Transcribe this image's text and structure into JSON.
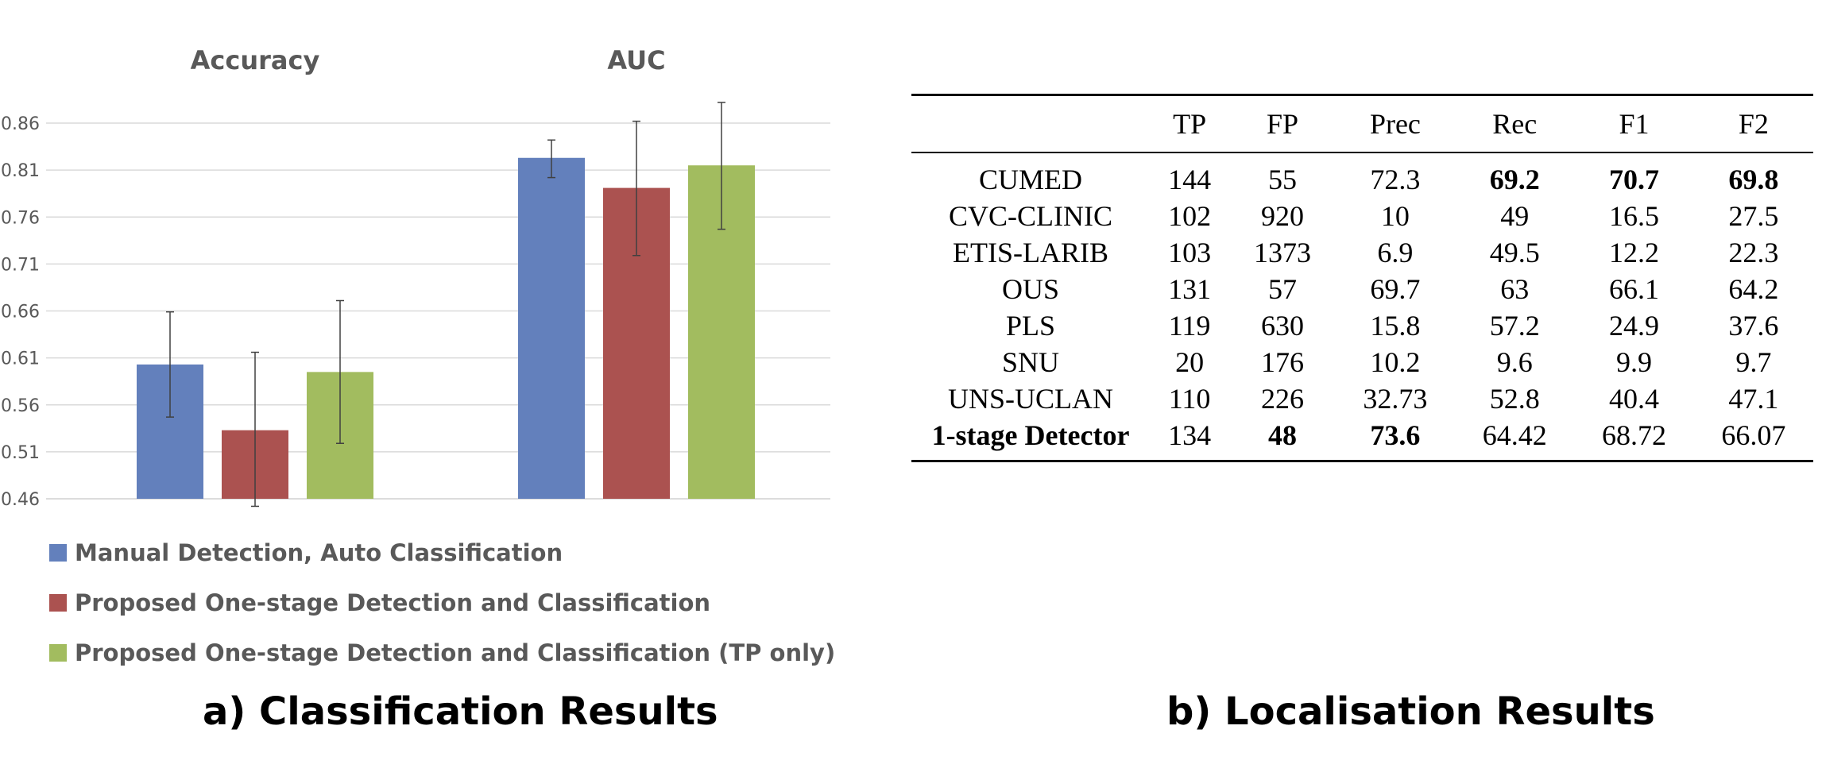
{
  "chart_data": {
    "type": "bar",
    "groups": [
      "Accuracy",
      "AUC"
    ],
    "yticks": [
      "0.46",
      "0.51",
      "0.56",
      "0.61",
      "0.66",
      "0.71",
      "0.76",
      "0.81",
      "0.86"
    ],
    "ylim": [
      0.46,
      0.88
    ],
    "grid": true,
    "series": [
      {
        "name": "Manual Detection, Auto Classification",
        "color": "#6380bc",
        "values": [
          0.603,
          0.823
        ],
        "err_low": [
          0.547,
          0.802
        ],
        "err_high": [
          0.659,
          0.842
        ]
      },
      {
        "name": "Proposed One-stage Detection and Classification",
        "color": "#ab5250",
        "values": [
          0.533,
          0.791
        ],
        "err_low": [
          0.452,
          0.719
        ],
        "err_high": [
          0.616,
          0.862
        ]
      },
      {
        "name": "Proposed One-stage Detection and Classification (TP only)",
        "color": "#a2bc5f",
        "values": [
          0.595,
          0.815
        ],
        "err_low": [
          0.519,
          0.747
        ],
        "err_high": [
          0.671,
          0.882
        ]
      }
    ],
    "legend_position": "bottom"
  },
  "captions": {
    "a": "a) Classification Results",
    "b": "b) Localisation Results"
  },
  "table": {
    "headers": [
      "",
      "TP",
      "FP",
      "Prec",
      "Rec",
      "F1",
      "F2"
    ],
    "rows": [
      {
        "cells": [
          "CUMED",
          "144",
          "55",
          "72.3",
          "69.2",
          "70.7",
          "69.8"
        ],
        "bold": [
          false,
          false,
          false,
          false,
          true,
          true,
          true
        ]
      },
      {
        "cells": [
          "CVC-CLINIC",
          "102",
          "920",
          "10",
          "49",
          "16.5",
          "27.5"
        ],
        "bold": [
          false,
          false,
          false,
          false,
          false,
          false,
          false
        ]
      },
      {
        "cells": [
          "ETIS-LARIB",
          "103",
          "1373",
          "6.9",
          "49.5",
          "12.2",
          "22.3"
        ],
        "bold": [
          false,
          false,
          false,
          false,
          false,
          false,
          false
        ]
      },
      {
        "cells": [
          "OUS",
          "131",
          "57",
          "69.7",
          "63",
          "66.1",
          "64.2"
        ],
        "bold": [
          false,
          false,
          false,
          false,
          false,
          false,
          false
        ]
      },
      {
        "cells": [
          "PLS",
          "119",
          "630",
          "15.8",
          "57.2",
          "24.9",
          "37.6"
        ],
        "bold": [
          false,
          false,
          false,
          false,
          false,
          false,
          false
        ]
      },
      {
        "cells": [
          "SNU",
          "20",
          "176",
          "10.2",
          "9.6",
          "9.9",
          "9.7"
        ],
        "bold": [
          false,
          false,
          false,
          false,
          false,
          false,
          false
        ]
      },
      {
        "cells": [
          "UNS-UCLAN",
          "110",
          "226",
          "32.73",
          "52.8",
          "40.4",
          "47.1"
        ],
        "bold": [
          false,
          false,
          false,
          false,
          false,
          false,
          false
        ]
      },
      {
        "cells": [
          "1-stage Detector",
          "134",
          "48",
          "73.6",
          "64.42",
          "68.72",
          "66.07"
        ],
        "bold": [
          true,
          false,
          true,
          true,
          false,
          false,
          false
        ]
      }
    ]
  }
}
